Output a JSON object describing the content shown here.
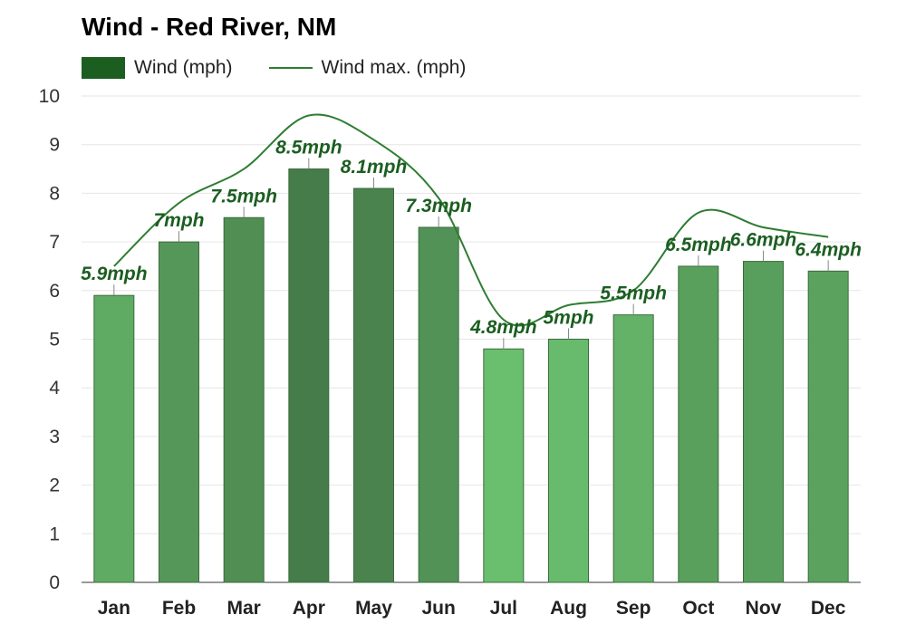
{
  "chart_data": {
    "type": "bar",
    "title": "Wind - Red River, NM",
    "categories": [
      "Jan",
      "Feb",
      "Mar",
      "Apr",
      "May",
      "Jun",
      "Jul",
      "Aug",
      "Sep",
      "Oct",
      "Nov",
      "Dec"
    ],
    "series": [
      {
        "name": "Wind (mph)",
        "type": "bar",
        "values": [
          5.9,
          7,
          7.5,
          8.5,
          8.1,
          7.3,
          4.8,
          5,
          5.5,
          6.5,
          6.6,
          6.4
        ],
        "data_labels": [
          "5.9mph",
          "7mph",
          "7.5mph",
          "8.5mph",
          "8.1mph",
          "7.3mph",
          "4.8mph",
          "5mph",
          "5.5mph",
          "6.5mph",
          "6.6mph",
          "6.4mph"
        ]
      },
      {
        "name": "Wind max. (mph)",
        "type": "line",
        "values": [
          6.5,
          7.8,
          8.5,
          9.6,
          9.1,
          7.9,
          5.4,
          5.7,
          6.0,
          7.6,
          7.3,
          7.1
        ]
      }
    ],
    "ylim": [
      0,
      10
    ],
    "yticks": [
      0,
      1,
      2,
      3,
      4,
      5,
      6,
      7,
      8,
      9,
      10
    ],
    "grid": true,
    "legend_position": "top-left",
    "colors": {
      "bar_light": "#6abf6e",
      "bar_dark": "#467c4a",
      "bar_stroke": "#3a6b3d",
      "line": "#2e7d32",
      "label": "#1b5e20",
      "grid": "#e6e6e6",
      "legend_bar": "#1b5e20"
    }
  }
}
